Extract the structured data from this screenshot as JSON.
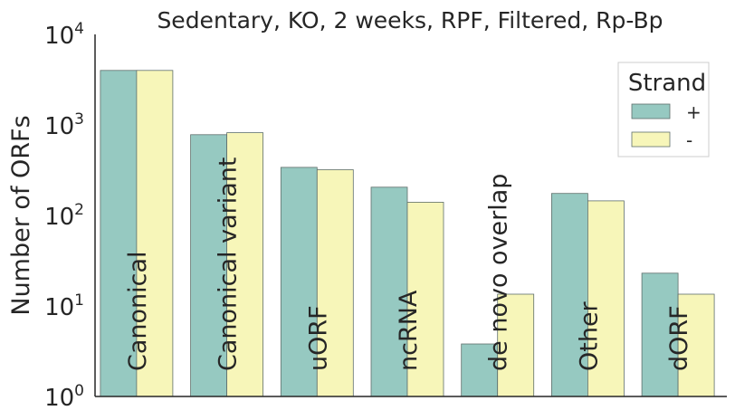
{
  "chart_data": {
    "type": "bar",
    "title": "Sedentary, KO, 2 weeks, RPF, Filtered, Rp-Bp",
    "xlabel": "",
    "ylabel": "Number of ORFs",
    "yscale": "log",
    "ylim": [
      1,
      10000
    ],
    "yticks": [
      {
        "base": "10",
        "exp": "0"
      },
      {
        "base": "10",
        "exp": "1"
      },
      {
        "base": "10",
        "exp": "2"
      },
      {
        "base": "10",
        "exp": "3"
      },
      {
        "base": "10",
        "exp": "4"
      }
    ],
    "categories": [
      "Canonical",
      "Canonical variant",
      "uORF",
      "ncRNA",
      "de novo overlap",
      "Other",
      "dORF"
    ],
    "series": [
      {
        "name": "+",
        "color": "#96c9c1",
        "values": [
          4000,
          780,
          340,
          205,
          3.8,
          175,
          23
        ]
      },
      {
        "name": "-",
        "color": "#f7f6b9",
        "values": [
          4000,
          820,
          320,
          140,
          13.5,
          145,
          13.5
        ]
      }
    ],
    "legend": {
      "title": "Strand",
      "position": "top-right"
    },
    "grid": false
  }
}
